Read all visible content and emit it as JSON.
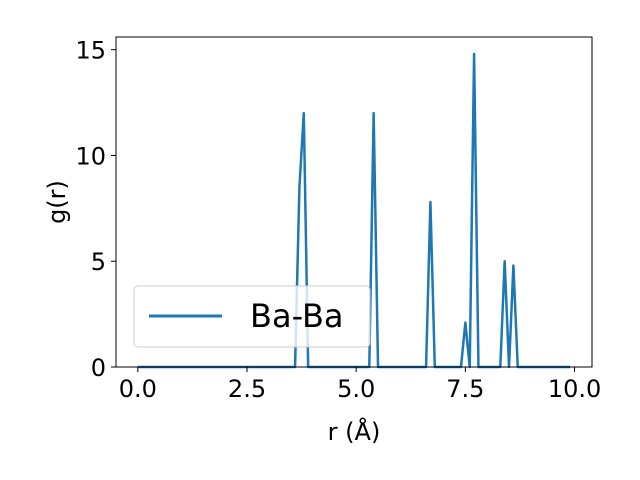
{
  "chart_data": {
    "type": "line",
    "xlabel": "r (Å)",
    "ylabel": "g(r)",
    "xlim": [
      -0.5,
      10.4
    ],
    "ylim": [
      0,
      15.6
    ],
    "x_ticks": [
      0.0,
      2.5,
      5.0,
      7.5,
      10.0
    ],
    "x_tick_labels": [
      "0.0",
      "2.5",
      "5.0",
      "7.5",
      "10.0"
    ],
    "y_ticks": [
      0,
      5,
      10,
      15
    ],
    "y_tick_labels": [
      "0",
      "5",
      "10",
      "15"
    ],
    "grid": false,
    "legend_position": "lower-left",
    "series": [
      {
        "name": "Ba-Ba",
        "color": "#1f77b4",
        "x": [
          0.0,
          3.6,
          3.7,
          3.8,
          3.9,
          5.3,
          5.4,
          5.5,
          6.6,
          6.7,
          6.8,
          7.4,
          7.5,
          7.6,
          7.7,
          7.8,
          8.3,
          8.4,
          8.5,
          8.6,
          8.7,
          9.9
        ],
        "y": [
          0.0,
          0.0,
          8.5,
          12.0,
          0.0,
          0.0,
          12.0,
          0.0,
          0.0,
          7.8,
          0.0,
          0.0,
          2.1,
          0.0,
          14.8,
          0.0,
          0.0,
          5.0,
          0.0,
          4.8,
          0.0,
          0.0
        ]
      }
    ]
  }
}
